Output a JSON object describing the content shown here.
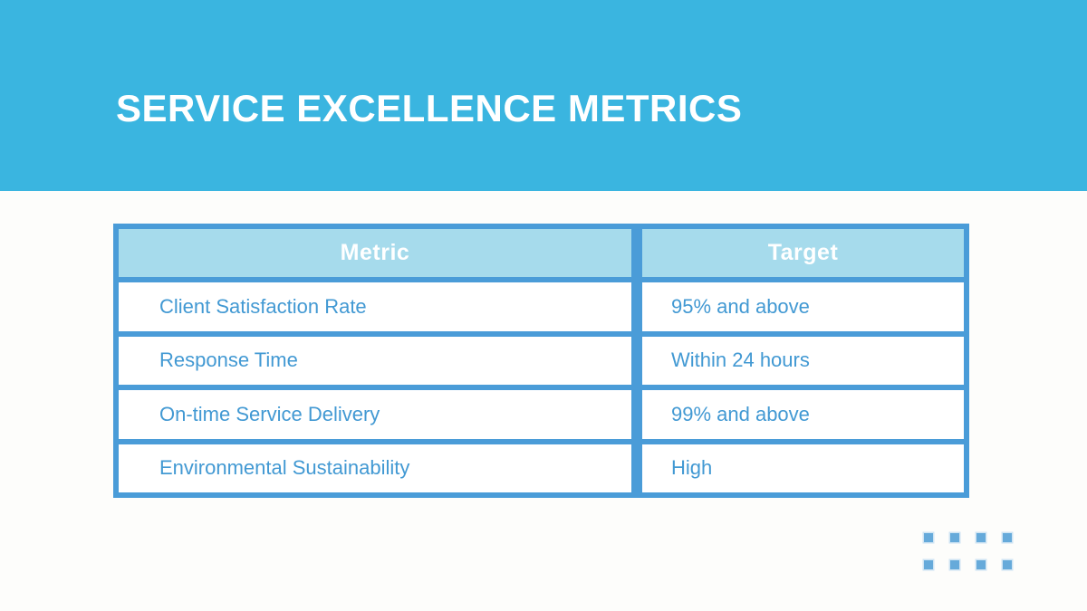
{
  "page": {
    "background": "#fdfdfb"
  },
  "header": {
    "title": "SERVICE EXCELLENCE METRICS",
    "background": "#3ab5e0",
    "text_color": "#ffffff"
  },
  "table": {
    "border_color": "#4a9cd8",
    "header_bg": "#a6dbec",
    "header_text_color": "#ffffff",
    "body_text_color": "#4299d3",
    "columns": [
      "Metric",
      "Target"
    ],
    "rows": [
      {
        "metric": "Client Satisfaction Rate",
        "target": "95% and above"
      },
      {
        "metric": "Response Time",
        "target": "Within 24 hours"
      },
      {
        "metric": "On-time Service Delivery",
        "target": "99% and above"
      },
      {
        "metric": "Environmental Sustainability",
        "target": "High"
      }
    ]
  },
  "decoration": {
    "name": "dot-grid",
    "rows": 2,
    "cols": 4,
    "color": "#66aada"
  }
}
